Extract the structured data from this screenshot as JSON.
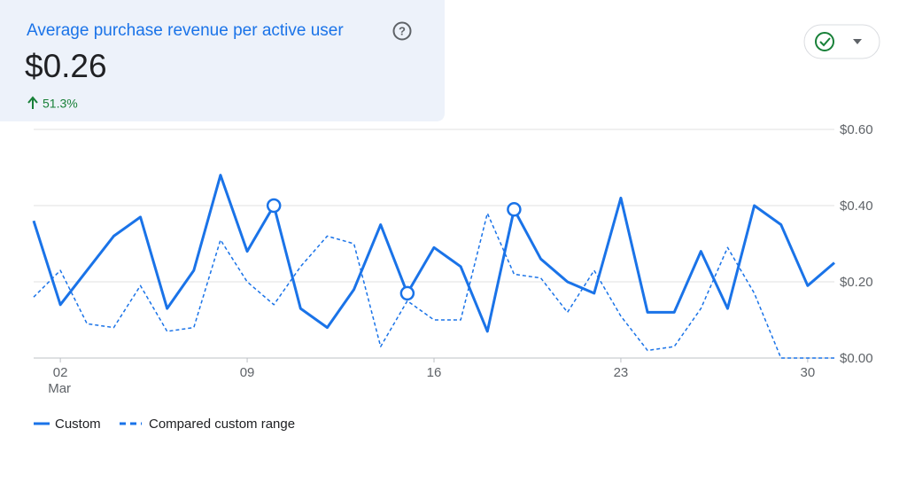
{
  "header": {
    "title": "Average purchase revenue per active user",
    "value": "$0.26",
    "change": "51.3%"
  },
  "chart_data": {
    "type": "line",
    "x": [
      1,
      2,
      3,
      4,
      5,
      6,
      7,
      8,
      9,
      10,
      11,
      12,
      13,
      14,
      15,
      16,
      17,
      18,
      19,
      20,
      21,
      22,
      23,
      24,
      25,
      26,
      27,
      28,
      29,
      30,
      31
    ],
    "xlim": [
      1,
      31
    ],
    "xticks": [
      {
        "value": 2,
        "label": "02"
      },
      {
        "value": 9,
        "label": "09"
      },
      16,
      23,
      30
    ],
    "x_sublabel": "Mar",
    "ylim": [
      0,
      0.6
    ],
    "yticks": [
      {
        "value": 0,
        "label": "$0.00"
      },
      {
        "value": 0.2,
        "label": "$0.20"
      },
      {
        "value": 0.4,
        "label": "$0.40"
      },
      {
        "value": 0.6,
        "label": "$0.60"
      }
    ],
    "grid": true,
    "highlighted_points": [
      9,
      14,
      18
    ],
    "series": [
      {
        "name": "Custom",
        "color": "#1a73e8",
        "style": "solid",
        "values": [
          0.36,
          0.14,
          0.23,
          0.32,
          0.37,
          0.13,
          0.23,
          0.48,
          0.28,
          0.4,
          0.13,
          0.08,
          0.18,
          0.35,
          0.17,
          0.29,
          0.24,
          0.07,
          0.39,
          0.26,
          0.2,
          0.17,
          0.42,
          0.12,
          0.12,
          0.28,
          0.13,
          0.4,
          0.35,
          0.19,
          0.25
        ]
      },
      {
        "name": "Compared custom range",
        "color": "#1a73e8",
        "style": "dashed",
        "values": [
          0.16,
          0.23,
          0.09,
          0.08,
          0.19,
          0.07,
          0.08,
          0.31,
          0.2,
          0.14,
          0.24,
          0.32,
          0.3,
          0.03,
          0.15,
          0.1,
          0.1,
          0.38,
          0.22,
          0.21,
          0.12,
          0.23,
          0.11,
          0.02,
          0.03,
          0.13,
          0.29,
          0.17,
          0.0,
          0.0,
          0.0
        ]
      }
    ]
  }
}
